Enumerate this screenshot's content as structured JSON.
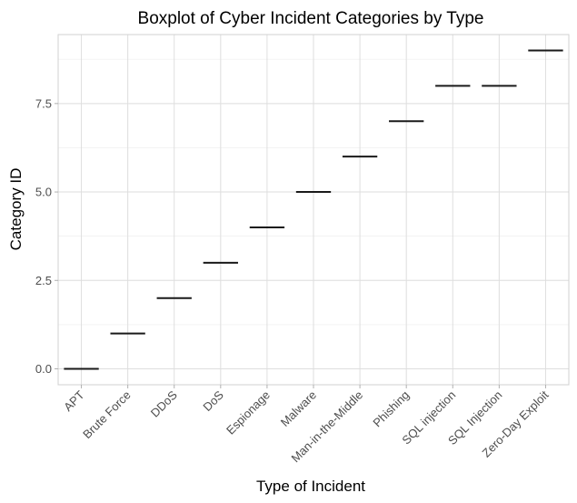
{
  "chart_data": {
    "type": "boxplot",
    "title": "Boxplot of Cyber Incident Categories by Type",
    "xlabel": "Type of Incident",
    "ylabel": "Category ID",
    "categories": [
      "APT",
      "Brute Force",
      "DDoS",
      "DoS",
      "Espionage",
      "Malware",
      "Man-in-the-Middle",
      "Phishing",
      "SQL injection",
      "SQL Injection",
      "Zero-Day Exploit"
    ],
    "values": [
      0,
      1,
      2,
      3,
      4,
      5,
      6,
      7,
      8,
      8,
      9
    ],
    "y_ticks": [
      0,
      2.5,
      5,
      7.5
    ],
    "y_tick_labels": [
      "0.0",
      "2.5",
      "5.0",
      "7.5"
    ],
    "ylim": [
      -0.45,
      9.45
    ],
    "grid": true,
    "colors": {
      "box_line": "#1a1a1a",
      "grid": "#dedede",
      "background": "#ffffff"
    }
  }
}
